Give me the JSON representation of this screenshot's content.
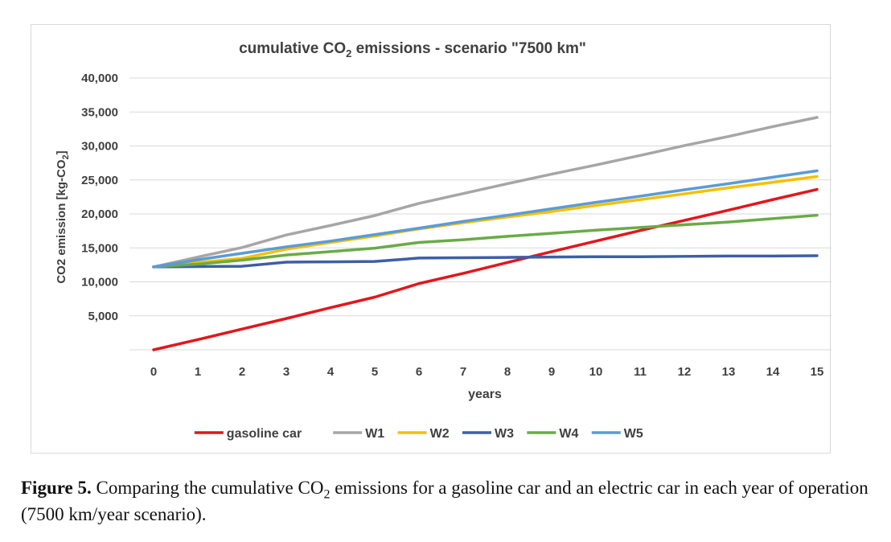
{
  "chart_data": {
    "type": "line",
    "title": {
      "prefix": "cumulative CO",
      "subscript": "2",
      "suffix": " emissions - scenario \"7500 km\""
    },
    "xlabel": "years",
    "ylabel": {
      "prefix": "CO2 emission [kg-CO",
      "subscript": "2",
      "suffix": "]"
    },
    "x": [
      0,
      1,
      2,
      3,
      4,
      5,
      6,
      7,
      8,
      9,
      10,
      11,
      12,
      13,
      14,
      15
    ],
    "x_tick_labels": [
      "0",
      "1",
      "2",
      "3",
      "4",
      "5",
      "6",
      "7",
      "8",
      "9",
      "10",
      "11",
      "12",
      "13",
      "14",
      "15"
    ],
    "ylim": [
      0,
      40000
    ],
    "y_ticks": [
      5000,
      10000,
      15000,
      20000,
      25000,
      30000,
      35000,
      40000
    ],
    "y_tick_labels": [
      "5,000",
      "10,000",
      "15,000",
      "20,000",
      "25,000",
      "30,000",
      "35,000",
      "40,000"
    ],
    "grid": true,
    "legend_position": "bottom",
    "series": [
      {
        "name": "gasoline car",
        "color": "#e3161b",
        "values": [
          0,
          1500,
          3050,
          4600,
          6200,
          7750,
          9750,
          11250,
          12850,
          14450,
          16000,
          17550,
          19050,
          20550,
          22100,
          23600
        ]
      },
      {
        "name": "W1",
        "color": "#a6a6a6",
        "values": [
          12200,
          13650,
          15050,
          16900,
          18300,
          19750,
          21550,
          23000,
          24450,
          25850,
          27200,
          28600,
          30050,
          31400,
          32850,
          34200
        ]
      },
      {
        "name": "W2",
        "color": "#f5c000",
        "values": [
          12200,
          12850,
          13450,
          14800,
          15800,
          16750,
          17800,
          18700,
          19550,
          20350,
          21250,
          22100,
          22950,
          23850,
          24650,
          25500
        ]
      },
      {
        "name": "W3",
        "color": "#3d5ea8",
        "values": [
          12200,
          12250,
          12300,
          12900,
          12950,
          13000,
          13500,
          13550,
          13600,
          13650,
          13700,
          13700,
          13750,
          13800,
          13800,
          13850
        ]
      },
      {
        "name": "W4",
        "color": "#6aab46",
        "values": [
          12200,
          12600,
          13200,
          13950,
          14450,
          14950,
          15800,
          16200,
          16700,
          17150,
          17600,
          18000,
          18400,
          18800,
          19300,
          19800
        ]
      },
      {
        "name": "W5",
        "color": "#5b9bd5",
        "values": [
          12200,
          13250,
          14200,
          15150,
          16000,
          16950,
          17900,
          18900,
          19800,
          20750,
          21700,
          22600,
          23550,
          24450,
          25400,
          26350
        ]
      }
    ]
  },
  "caption": {
    "label": "Figure 5.",
    "text_before": " Comparing the cumulative CO",
    "subscript": "2",
    "text_after": " emissions for a gasoline car and an electric car in each year of operation (7500 km/year scenario)."
  }
}
